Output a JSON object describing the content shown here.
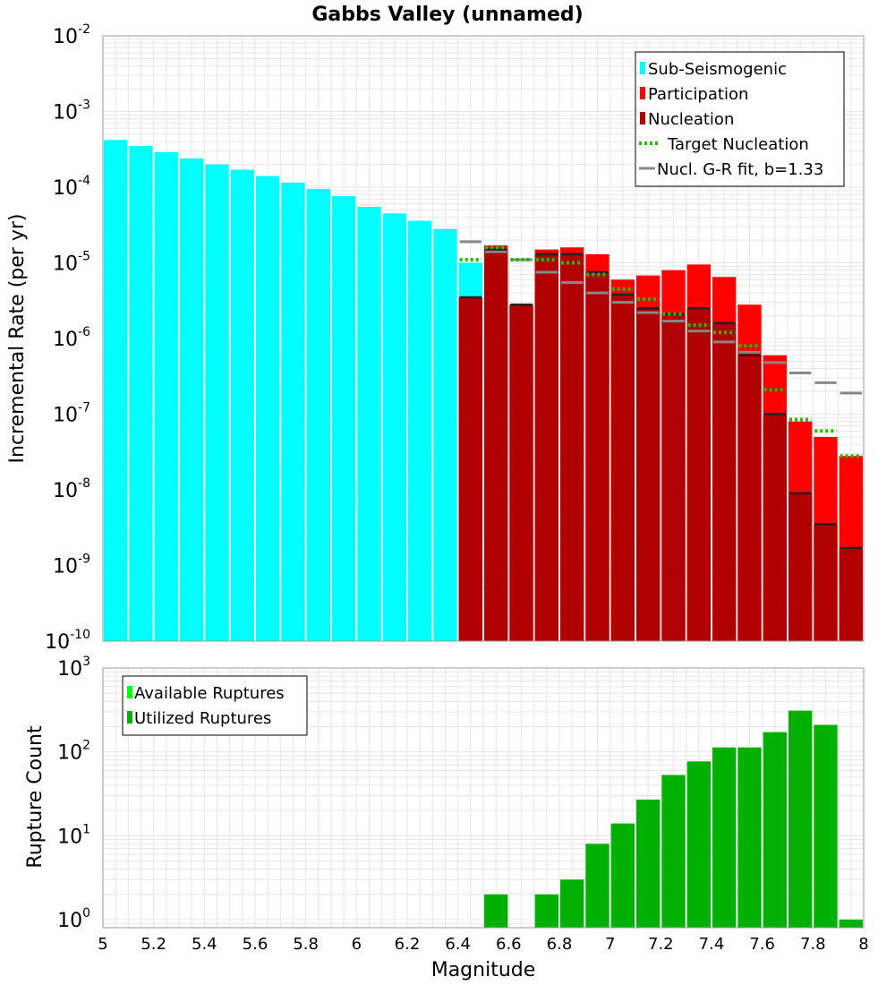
{
  "title": "Gabbs Valley (unnamed)",
  "colors": {
    "sub_seismogenic": "#00ffff",
    "participation": "#ff0000",
    "nucleation": "#b00000",
    "target_nucleation": "#22bb00",
    "gr_fit": "#888888",
    "available": "#00ff00",
    "utilized": "#00b000",
    "grid": "#e6e6e6",
    "frame": "#999999"
  },
  "chart_data": [
    {
      "type": "bar",
      "name": "rate-panel",
      "xlabel": "Magnitude",
      "ylabel": "Incremental Rate (per yr)",
      "yscale": "log",
      "xlim": [
        5,
        8
      ],
      "ylim": [
        1e-10,
        0.01
      ],
      "y_tick_bases": [
        "10",
        "10",
        "10",
        "10",
        "10",
        "10",
        "10",
        "10",
        "10"
      ],
      "y_tick_exponents": [
        "-10",
        "-9",
        "-8",
        "-7",
        "-6",
        "-5",
        "-4",
        "-3",
        "-2"
      ],
      "bin_width": 0.1,
      "legend": {
        "position": "top-right",
        "entries": [
          "Sub-Seismogenic",
          "Participation",
          "Nucleation",
          "Target Nucleation",
          "Nucl. G-R fit, b=1.33"
        ]
      },
      "series": [
        {
          "name": "Sub-Seismogenic",
          "x": [
            5.05,
            5.15,
            5.25,
            5.35,
            5.45,
            5.55,
            5.65,
            5.75,
            5.85,
            5.95,
            6.05,
            6.15,
            6.25,
            6.35,
            6.45
          ],
          "values": [
            0.00042,
            0.00035,
            0.00029,
            0.00024,
            0.0002,
            0.00017,
            0.00014,
            0.000115,
            9.5e-05,
            7.6e-05,
            5.5e-05,
            4.5e-05,
            3.6e-05,
            2.8e-05,
            1e-05
          ]
        },
        {
          "name": "Participation",
          "x": [
            6.45,
            6.55,
            6.65,
            6.75,
            6.85,
            6.95,
            7.05,
            7.15,
            7.25,
            7.35,
            7.45,
            7.55,
            7.65,
            7.75,
            7.85,
            7.95
          ],
          "values": [
            3.5e-06,
            1.7e-05,
            2.8e-06,
            1.5e-05,
            1.6e-05,
            1.3e-05,
            6e-06,
            6.8e-06,
            8e-06,
            9.5e-06,
            6.5e-06,
            2.8e-06,
            6e-07,
            8e-08,
            5e-08,
            2.8e-08
          ]
        },
        {
          "name": "Nucleation",
          "x": [
            6.45,
            6.55,
            6.65,
            6.75,
            6.85,
            6.95,
            7.05,
            7.15,
            7.25,
            7.35,
            7.45,
            7.55,
            7.65,
            7.75,
            7.85,
            7.95
          ],
          "values": [
            3.5e-06,
            1.5e-05,
            2.8e-06,
            1.3e-05,
            1.3e-05,
            7.5e-06,
            3.8e-06,
            2.5e-06,
            2.1e-06,
            2.5e-06,
            1.6e-06,
            6e-07,
            1e-07,
            9e-09,
            3.5e-09,
            1.7e-09
          ]
        },
        {
          "name": "Target Nucleation",
          "x": [
            6.45,
            6.55,
            6.65,
            6.75,
            6.85,
            6.95,
            7.05,
            7.15,
            7.25,
            7.35,
            7.45,
            7.55,
            7.65,
            7.75,
            7.85,
            7.95
          ],
          "values": [
            1.1e-05,
            1.6e-05,
            1.1e-05,
            1.1e-05,
            1e-05,
            7e-06,
            4.5e-06,
            3.3e-06,
            2.1e-06,
            1.5e-06,
            1.2e-06,
            8e-07,
            2.1e-07,
            8.5e-08,
            6e-08,
            2.8e-08
          ]
        },
        {
          "name": "Nucl. G-R fit, b=1.33",
          "x": [
            6.45,
            6.55,
            6.65,
            6.75,
            6.85,
            6.95,
            7.05,
            7.15,
            7.25,
            7.35,
            7.45,
            7.55,
            7.65,
            7.75,
            7.85,
            7.95
          ],
          "values": [
            1.9e-05,
            1.4e-05,
            1.1e-05,
            7.5e-06,
            5.5e-06,
            4e-06,
            3e-06,
            2.2e-06,
            1.7e-06,
            1.25e-06,
            9e-07,
            6.6e-07,
            4.8e-07,
            3.5e-07,
            2.6e-07,
            1.9e-07
          ]
        }
      ]
    },
    {
      "type": "bar",
      "name": "count-panel",
      "xlabel": "Magnitude",
      "ylabel": "Rupture Count",
      "yscale": "log",
      "xlim": [
        5,
        8
      ],
      "ylim": [
        0.8,
        1000
      ],
      "x_ticks": [
        "5",
        "5.2",
        "5.4",
        "5.6",
        "5.8",
        "6",
        "6.2",
        "6.4",
        "6.6",
        "6.8",
        "7",
        "7.2",
        "7.4",
        "7.6",
        "7.8",
        "8"
      ],
      "x_tick_values": [
        5,
        5.2,
        5.4,
        5.6,
        5.8,
        6,
        6.2,
        6.4,
        6.6,
        6.8,
        7,
        7.2,
        7.4,
        7.6,
        7.8,
        8
      ],
      "y_tick_bases": [
        "10",
        "10",
        "10",
        "10"
      ],
      "y_tick_exponents": [
        "0",
        "1",
        "2",
        "3"
      ],
      "bin_width": 0.1,
      "legend": {
        "position": "top-left",
        "entries": [
          "Available Ruptures",
          "Utilized Ruptures"
        ]
      },
      "series": [
        {
          "name": "Utilized Ruptures",
          "x": [
            6.55,
            6.75,
            6.85,
            6.95,
            7.05,
            7.15,
            7.25,
            7.35,
            7.45,
            7.55,
            7.65,
            7.75,
            7.85,
            7.95
          ],
          "values": [
            2,
            2,
            3,
            8,
            14,
            27,
            53,
            77,
            113,
            113,
            172,
            310,
            210,
            1
          ]
        }
      ]
    }
  ]
}
